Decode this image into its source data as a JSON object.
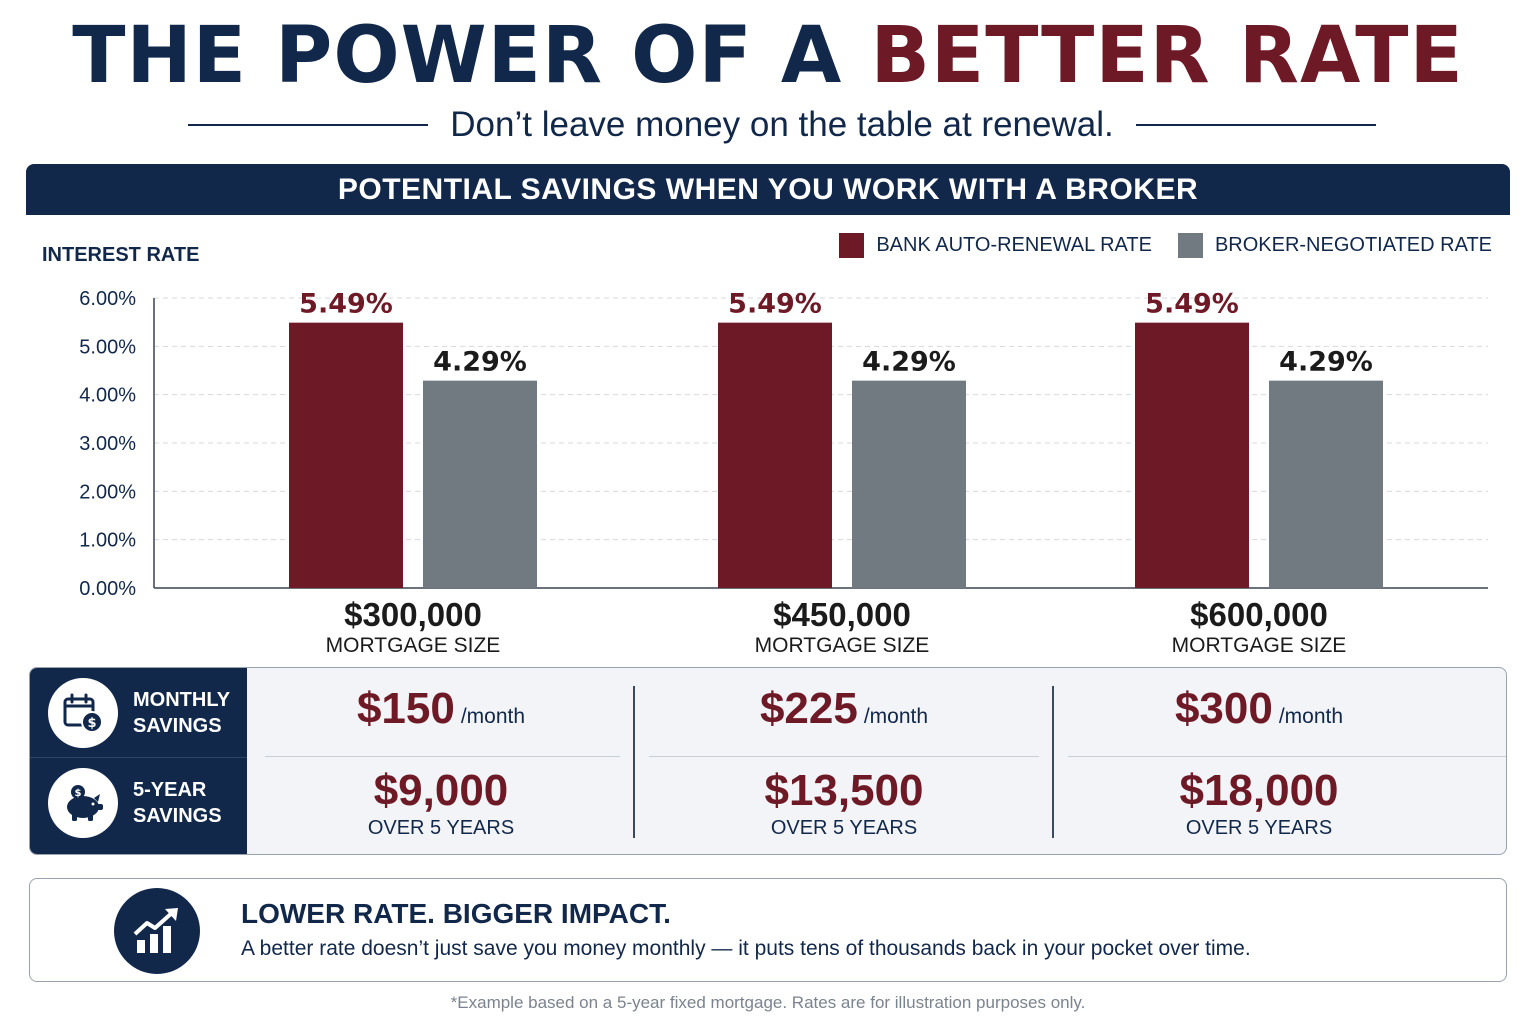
{
  "title": {
    "part1": "THE POWER OF A",
    "part2": "BETTER RATE"
  },
  "subtitle": "Don’t leave money on the table at renewal.",
  "banner": "POTENTIAL SAVINGS WHEN YOU WORK WITH A BROKER",
  "colors": {
    "navy": "#12284a",
    "bank": "#6e1a26",
    "broker": "#717981",
    "grid": "#d5d9de"
  },
  "chart_data": {
    "type": "bar",
    "ylabel": "INTEREST RATE",
    "ylim": [
      0,
      6
    ],
    "ytick_labels": [
      "0.00%",
      "1.00%",
      "2.00%",
      "3.00%",
      "4.00%",
      "5.00%",
      "6.00%"
    ],
    "grid": true,
    "legend_position": "top-right",
    "categories": [
      {
        "amount": "$300,000",
        "sub": "MORTGAGE SIZE"
      },
      {
        "amount": "$450,000",
        "sub": "MORTGAGE SIZE"
      },
      {
        "amount": "$600,000",
        "sub": "MORTGAGE SIZE"
      }
    ],
    "series": [
      {
        "name": "BANK AUTO-RENEWAL RATE",
        "color": "#6e1a26",
        "values": [
          5.49,
          5.49,
          5.49
        ],
        "labels": [
          "5.49%",
          "5.49%",
          "5.49%"
        ]
      },
      {
        "name": "BROKER-NEGOTIATED RATE",
        "color": "#717981",
        "values": [
          4.29,
          4.29,
          4.29
        ],
        "labels": [
          "4.29%",
          "4.29%",
          "4.29%"
        ]
      }
    ]
  },
  "savings": {
    "monthly_label": "MONTHLY SAVINGS",
    "five_year_label": "5-YEAR SAVINGS",
    "monthly_icon": "calendar-dollar-icon",
    "five_year_icon": "piggy-bank-icon",
    "columns": [
      {
        "monthly": "$150",
        "monthly_unit": "/month",
        "total": "$9,000",
        "total_unit": "OVER 5 YEARS"
      },
      {
        "monthly": "$225",
        "monthly_unit": "/month",
        "total": "$13,500",
        "total_unit": "OVER 5 YEARS"
      },
      {
        "monthly": "$300",
        "monthly_unit": "/month",
        "total": "$18,000",
        "total_unit": "OVER 5 YEARS"
      }
    ]
  },
  "impact": {
    "icon": "rising-chart-icon",
    "title": "LOWER RATE. BIGGER IMPACT.",
    "text": "A better rate doesn’t just save you money monthly — it puts tens of thousands back in your pocket over time."
  },
  "footnote": "*Example based on a 5-year fixed mortgage. Rates are for illustration purposes only."
}
